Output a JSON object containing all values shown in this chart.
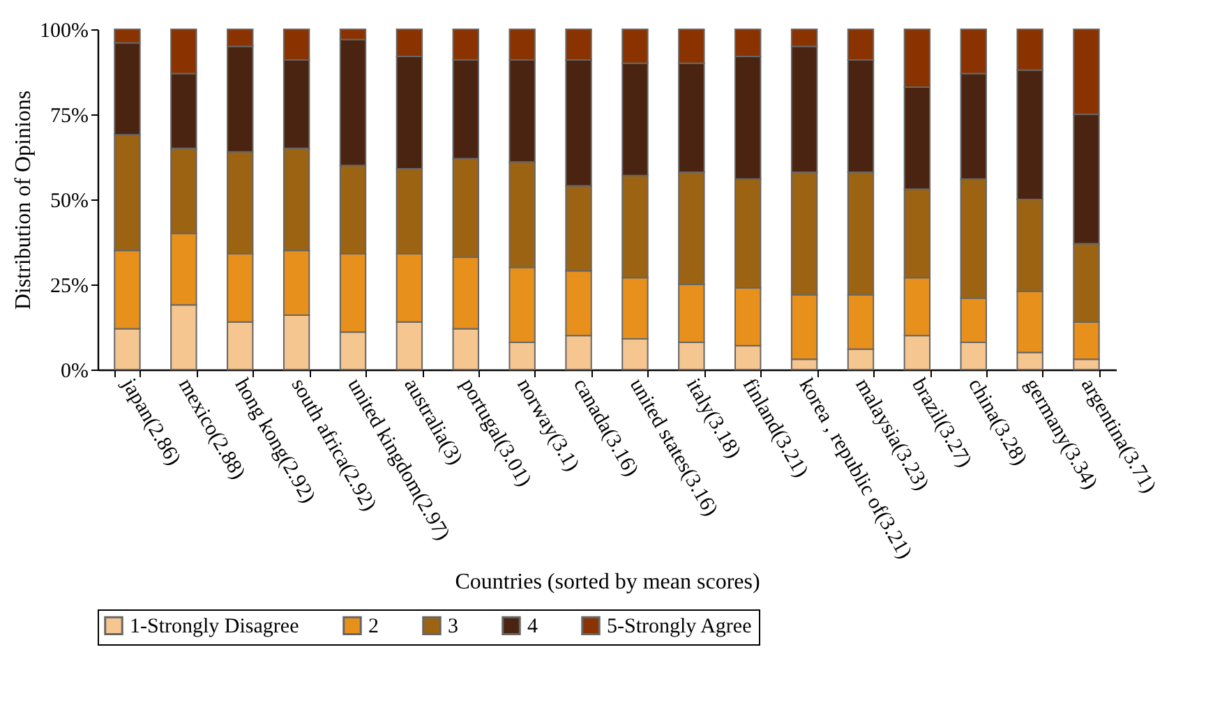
{
  "chart_data": {
    "type": "bar",
    "stacked": true,
    "xlabel": "Countries (sorted by mean scores)",
    "ylabel": "Distribution of Opinions",
    "categories": [
      "japan(2.86)",
      "mexico(2.88)",
      "hong kong(2.92)",
      "south africa(2.92)",
      "united kingdom(2.97)",
      "australia(3)",
      "portugal(3.01)",
      "norway(3.1)",
      "canada(3.16)",
      "united states(3.16)",
      "italy(3.18)",
      "finland(3.21)",
      "korea , republic of(3.21)",
      "malaysia(3.23)",
      "brazil(3.27)",
      "china(3.28)",
      "germany(3.34)",
      "argentina(3.71)"
    ],
    "series": [
      {
        "name": "1-Strongly Disagree",
        "color": "#f5c690",
        "values": [
          12,
          19,
          14,
          16,
          11,
          14,
          12,
          8,
          10,
          9,
          8,
          7,
          3,
          6,
          10,
          8,
          5,
          3
        ]
      },
      {
        "name": "2",
        "color": "#e8901c",
        "values": [
          23,
          21,
          20,
          19,
          23,
          20,
          21,
          22,
          19,
          18,
          17,
          17,
          19,
          16,
          17,
          13,
          18,
          11
        ]
      },
      {
        "name": "3",
        "color": "#9c6412",
        "values": [
          34,
          25,
          30,
          30,
          26,
          25,
          29,
          31,
          25,
          30,
          33,
          32,
          36,
          36,
          26,
          35,
          27,
          23
        ]
      },
      {
        "name": "4",
        "color": "#4a2410",
        "values": [
          27,
          22,
          31,
          26,
          37,
          33,
          29,
          30,
          37,
          33,
          32,
          36,
          37,
          33,
          30,
          31,
          38,
          38
        ]
      },
      {
        "name": "5-Strongly Agree",
        "color": "#8b3300",
        "values": [
          4,
          13,
          5,
          9,
          3,
          8,
          9,
          9,
          9,
          10,
          10,
          8,
          5,
          9,
          17,
          13,
          12,
          25
        ]
      }
    ],
    "ylim": [
      0,
      100
    ],
    "yticks": [
      {
        "value": 0,
        "label": "0%"
      },
      {
        "value": 25,
        "label": "25%"
      },
      {
        "value": 50,
        "label": "50%"
      },
      {
        "value": 75,
        "label": "75%"
      },
      {
        "value": 100,
        "label": "100%"
      }
    ],
    "grid": false,
    "legend": "bottom"
  }
}
